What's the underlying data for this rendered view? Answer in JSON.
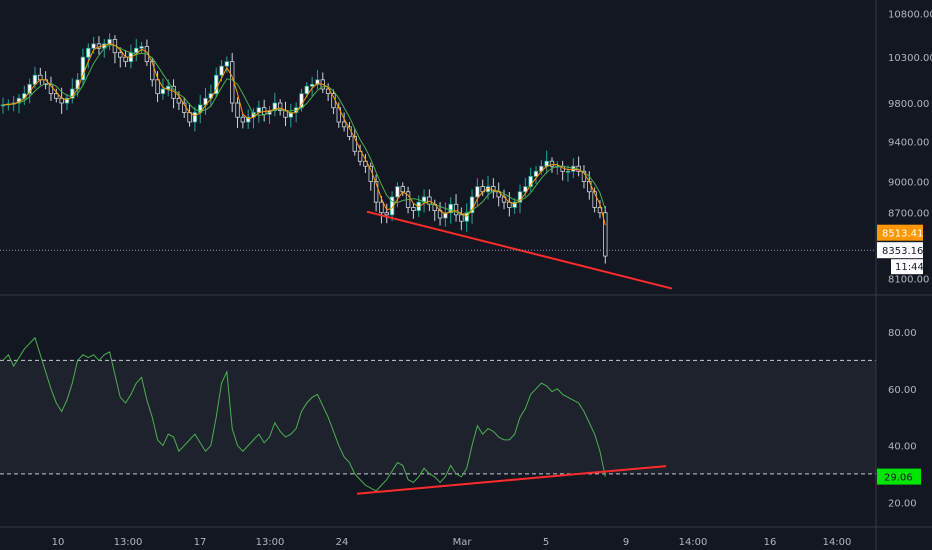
{
  "colors": {
    "background": "#131722",
    "grid_line": "#363a45",
    "axis_text": "#b2b5be",
    "candle_up": "#26a69a",
    "candle_body_up": "#ffffff",
    "candle_wick": "#d1d4dc",
    "ma_line_1": "#ff9800",
    "ma_line_2": "#4caf50",
    "rsi_line": "#4caf50",
    "trendline": "#ff2b2b",
    "rsi_band_fill": "#1e222d",
    "price_tag_bg": "#ff9800",
    "rsi_tag_bg": "#00e600"
  },
  "price_axis": {
    "ticks": [
      "10800.00",
      "10300.00",
      "9800.00",
      "9400.00",
      "9000.00",
      "8700.00",
      "8100.00"
    ]
  },
  "rsi_axis": {
    "ticks": [
      "80.00",
      "60.00",
      "40.00",
      "20.00"
    ]
  },
  "x_axis": {
    "ticks": [
      "10",
      "13:00",
      "17",
      "13:00",
      "24",
      "Mar",
      "5",
      "9",
      "14:00",
      "16",
      "14:00"
    ]
  },
  "tags": {
    "price_last": "8513.41",
    "price_crosshair": "8353.16",
    "countdown": "11:44",
    "rsi_value": "29.06"
  },
  "chart_data": [
    {
      "type": "candlestick",
      "title": "",
      "ylim": [
        8000,
        10900
      ],
      "log_scale": true,
      "grid": false,
      "candles_close_approx": [
        9780,
        9790,
        9800,
        9850,
        9900,
        10000,
        10100,
        10050,
        10000,
        9900,
        9850,
        9800,
        9850,
        9950,
        10050,
        10300,
        10400,
        10450,
        10400,
        10450,
        10500,
        10350,
        10300,
        10250,
        10350,
        10400,
        10420,
        10250,
        10050,
        9900,
        9950,
        9980,
        9850,
        9800,
        9700,
        9600,
        9700,
        9780,
        9850,
        9900,
        10100,
        10200,
        10250,
        9800,
        9650,
        9600,
        9650,
        9700,
        9750,
        9680,
        9720,
        9800,
        9720,
        9650,
        9700,
        9750,
        9900,
        9980,
        10000,
        10050,
        9950,
        9900,
        9750,
        9600,
        9550,
        9450,
        9300,
        9200,
        9150,
        9000,
        8800,
        8700,
        8680,
        8850,
        8950,
        8900,
        8750,
        8720,
        8800,
        8850,
        8780,
        8720,
        8650,
        8700,
        8780,
        8680,
        8620,
        8700,
        8850,
        8950,
        8900,
        8950,
        8900,
        8850,
        8800,
        8750,
        8800,
        8900,
        8950,
        9050,
        9100,
        9150,
        9200,
        9150,
        9150,
        9100,
        9100,
        9150,
        9100,
        9000,
        8900,
        8750,
        8700,
        8300
      ],
      "trendline": {
        "from": [
          "24",
          8700
        ],
        "to": [
          "9",
          8030
        ]
      }
    },
    {
      "type": "line",
      "title": "",
      "ylim": [
        12,
        92
      ],
      "levels": [
        70,
        30
      ],
      "values": [
        70,
        72,
        68,
        71,
        74,
        76,
        78,
        72,
        66,
        60,
        55,
        52,
        56,
        62,
        70,
        72,
        71,
        72,
        70,
        72,
        73,
        65,
        57,
        55,
        58,
        62,
        64,
        56,
        50,
        42,
        40,
        44,
        43,
        38,
        40,
        42,
        44,
        41,
        38,
        40,
        50,
        62,
        66,
        46,
        40,
        38,
        40,
        42,
        44,
        41,
        43,
        48,
        45,
        43,
        44,
        46,
        52,
        55,
        57,
        58,
        54,
        50,
        45,
        40,
        36,
        34,
        30,
        28,
        26,
        25,
        24,
        26,
        28,
        31,
        34,
        33,
        28,
        27,
        29,
        32,
        30,
        29,
        27,
        29,
        33,
        30,
        29,
        32,
        40,
        47,
        44,
        46,
        45,
        43,
        42,
        42,
        44,
        50,
        53,
        58,
        60,
        62,
        61,
        59,
        60,
        58,
        57,
        56,
        55,
        52,
        48,
        44,
        38,
        29
      ],
      "trendline": {
        "from": [
          "24",
          23
        ],
        "to": [
          "9",
          31
        ]
      }
    }
  ]
}
